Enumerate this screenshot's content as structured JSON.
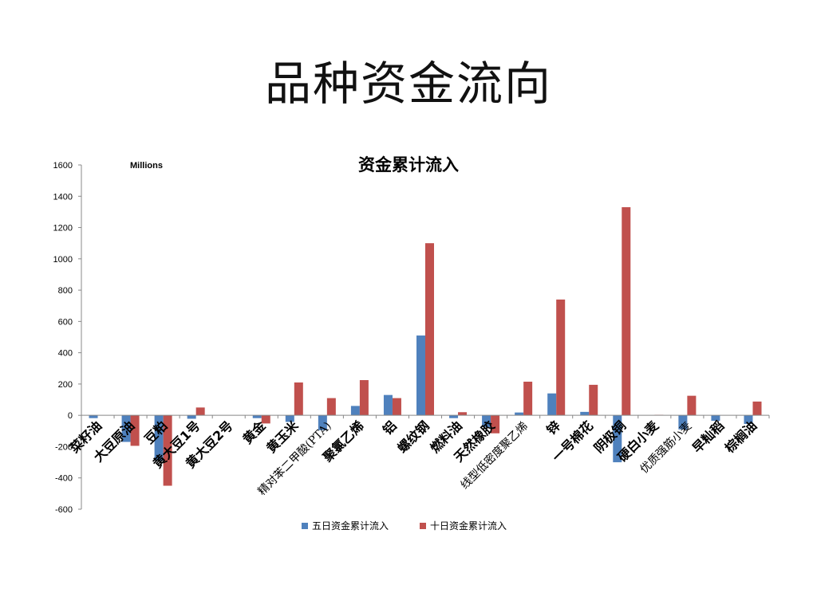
{
  "slide": {
    "title": "品种资金流向"
  },
  "chart_data": {
    "type": "bar",
    "title": "资金累计流入",
    "unit_label": "Millions",
    "ylim": [
      -600,
      1600
    ],
    "yticks": [
      1600,
      1400,
      1200,
      1000,
      800,
      600,
      400,
      200,
      0,
      -200,
      -400,
      -600
    ],
    "grid": false,
    "legend_position": "bottom",
    "categories": [
      "菜籽油",
      "大豆原油",
      "豆粕",
      "黄大豆1号",
      "黄大豆2号",
      "黄金",
      "黄玉米",
      "精对苯二甲酸(PTA)",
      "聚氯乙烯",
      "铝",
      "螺纹钢",
      "燃料油",
      "天然橡胶",
      "线型低密度聚乙烯",
      "锌",
      "一号棉花",
      "阴极铜",
      "硬白小麦",
      "优质强筋小麦",
      "早籼稻",
      "棕榈油"
    ],
    "series": [
      {
        "name": "五日资金累计流入",
        "color": "#4F81BD",
        "values": [
          -18,
          -170,
          -290,
          -22,
          0,
          -18,
          -42,
          -95,
          60,
          130,
          510,
          -18,
          -75,
          18,
          140,
          22,
          -300,
          0,
          -90,
          -35,
          -55
        ]
      },
      {
        "name": "十日资金累计流入",
        "color": "#C0504D",
        "values": [
          0,
          -195,
          -450,
          50,
          0,
          -52,
          210,
          110,
          225,
          110,
          1100,
          20,
          -115,
          215,
          740,
          195,
          1330,
          3,
          125,
          0,
          88
        ]
      }
    ]
  }
}
